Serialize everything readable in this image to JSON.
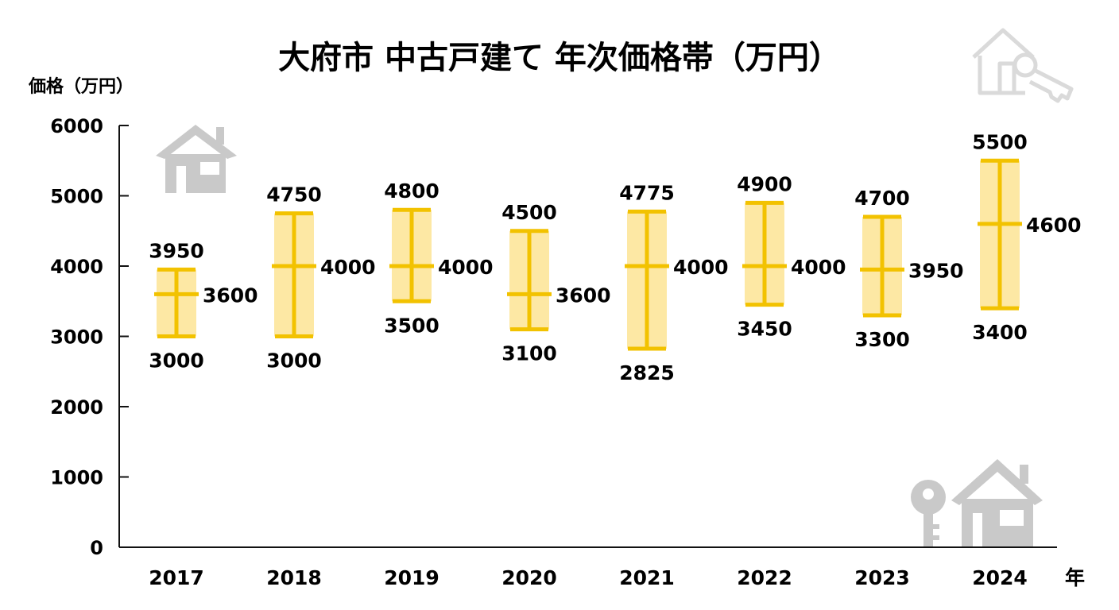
{
  "chart_data": {
    "type": "range-bar",
    "title": "大府市 中古戸建て 年次価格帯（万円）",
    "ylabel": "価格（万円）",
    "xlabel": "年",
    "ylim": [
      0,
      6000
    ],
    "yticks": [
      0,
      1000,
      2000,
      3000,
      4000,
      5000,
      6000
    ],
    "grid": false,
    "categories": [
      "2017",
      "2018",
      "2019",
      "2020",
      "2021",
      "2022",
      "2023",
      "2024"
    ],
    "series": [
      {
        "low": 3000,
        "mid": 3600,
        "high": 3950
      },
      {
        "low": 3000,
        "mid": 4000,
        "high": 4750
      },
      {
        "low": 3500,
        "mid": 4000,
        "high": 4800
      },
      {
        "low": 3100,
        "mid": 3600,
        "high": 4500
      },
      {
        "low": 2825,
        "mid": 4000,
        "high": 4775
      },
      {
        "low": 3450,
        "mid": 4000,
        "high": 4900
      },
      {
        "low": 3300,
        "mid": 3950,
        "high": 4700
      },
      {
        "low": 3400,
        "mid": 4600,
        "high": 5500
      }
    ],
    "colors": {
      "band": "#fde8a4",
      "line": "#f2c200",
      "axis": "#111111",
      "icon": "#c9c9c9",
      "icon_light": "#dadada"
    },
    "icons": [
      "house-icon",
      "house-key-icon",
      "key-house-icon"
    ]
  }
}
